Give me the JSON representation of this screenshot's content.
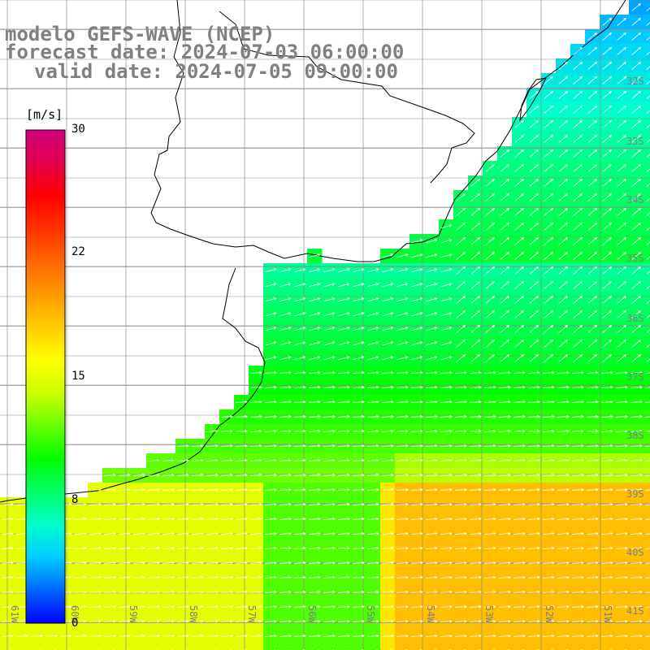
{
  "map": {
    "title": {
      "model": "modelo GEFS-WAVE (NCEP)",
      "forecast": "forecast date: 2024-07-03 06:00:00",
      "valid": "valid date: 2024-07-05 09:00:00"
    },
    "colorbar": {
      "unit": "[m/s]",
      "min": 0,
      "max": 30,
      "ticks": [
        "30",
        "22",
        "15",
        "8",
        "0"
      ],
      "tick_values": [
        30,
        22,
        15,
        8,
        0
      ],
      "colors": [
        "#0000ff",
        "#0066ff",
        "#00ccff",
        "#00ffcc",
        "#00ff66",
        "#00ff00",
        "#66ff00",
        "#ccff00",
        "#ffff00",
        "#ffcc00",
        "#ff9900",
        "#ff6600",
        "#ff3300",
        "#ff0000",
        "#e6004c",
        "#cc0080"
      ]
    },
    "lon_labels": [
      "61W",
      "60W",
      "59W",
      "58W",
      "57W",
      "56W",
      "55W",
      "54W",
      "53W",
      "52W",
      "51W"
    ],
    "lat_labels": [
      "32S",
      "33S",
      "34S",
      "35S",
      "36S",
      "37S",
      "38S",
      "39S",
      "40S",
      "41S"
    ],
    "variable": "wind speed",
    "colors": {
      "grid": "#8c8c8c",
      "coast": "#000000",
      "arrow": "#ffffff",
      "label": "#808080"
    }
  }
}
